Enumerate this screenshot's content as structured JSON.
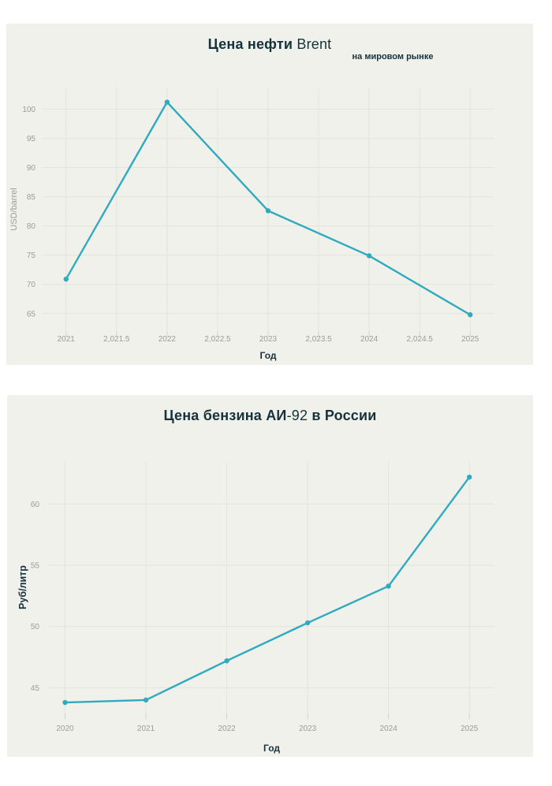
{
  "theme": {
    "page_background": "#ffffff",
    "card_background": "#f1f1eb",
    "grid_color": "#e4e4dc",
    "tick_color": "#d2d2c9",
    "tick_label_color": "#9c9c98",
    "line_color": "#2faabf",
    "title_color": "#15323a"
  },
  "chart_data": [
    {
      "type": "line",
      "title_parts": [
        {
          "text": "Цена нефти",
          "bold": true
        },
        {
          "text": " Brent",
          "bold": false
        }
      ],
      "title_plain": "Цена нефти Brent",
      "subtitle": "на мировом рынке",
      "xlabel": "Год",
      "ylabel": "USD/barrel",
      "x": [
        2021,
        2022,
        2023,
        2024,
        2025
      ],
      "values": [
        70.9,
        101.2,
        82.6,
        74.9,
        64.8
      ],
      "x_ticks": [
        {
          "v": 2021,
          "label": "2021"
        },
        {
          "v": 2021.5,
          "label": "2,021.5"
        },
        {
          "v": 2022,
          "label": "2022"
        },
        {
          "v": 2022.5,
          "label": "2,022.5"
        },
        {
          "v": 2023,
          "label": "2023"
        },
        {
          "v": 2023.5,
          "label": "2,023.5"
        },
        {
          "v": 2024,
          "label": "2024"
        },
        {
          "v": 2024.5,
          "label": "2,024.5"
        },
        {
          "v": 2025,
          "label": "2025"
        }
      ],
      "y_ticks": [
        65,
        70,
        75,
        80,
        85,
        90,
        95,
        100
      ],
      "xlim": [
        2020.76,
        2025.24
      ],
      "ylim": [
        62.0,
        103.7
      ],
      "grid": true,
      "legend": false
    },
    {
      "type": "line",
      "title_parts": [
        {
          "text": "Цена бензина АИ",
          "bold": true
        },
        {
          "text": "-92",
          "bold": false
        },
        {
          "text": " в России",
          "bold": true
        }
      ],
      "title_plain": "Цена бензина АИ-92 в России",
      "subtitle": "",
      "xlabel": "Год",
      "ylabel": "Руб/литр",
      "x": [
        2020,
        2021,
        2022,
        2023,
        2024,
        2025
      ],
      "values": [
        43.8,
        44.0,
        47.2,
        50.3,
        53.3,
        62.2
      ],
      "x_ticks": [
        {
          "v": 2020,
          "label": "2020"
        },
        {
          "v": 2021,
          "label": "2021"
        },
        {
          "v": 2022,
          "label": "2022"
        },
        {
          "v": 2023,
          "label": "2023"
        },
        {
          "v": 2024,
          "label": "2024"
        },
        {
          "v": 2025,
          "label": "2025"
        }
      ],
      "y_ticks": [
        45,
        50,
        55,
        60
      ],
      "xlim": [
        2019.8,
        2025.31
      ],
      "ylim": [
        42.9,
        63.5
      ],
      "grid": true,
      "legend": false
    }
  ]
}
